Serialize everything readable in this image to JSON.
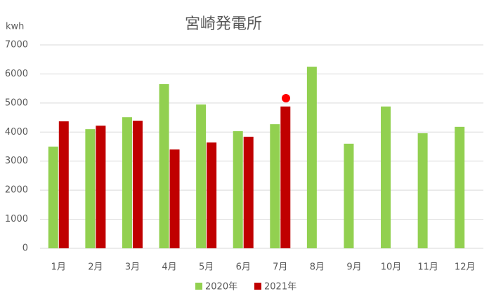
{
  "chart_data": {
    "type": "bar",
    "title": "宮崎発電所",
    "y_label": "kwh",
    "categories": [
      "1月",
      "2月",
      "3月",
      "4月",
      "5月",
      "6月",
      "7月",
      "8月",
      "9月",
      "10月",
      "11月",
      "12月"
    ],
    "series": [
      {
        "name": "2020年",
        "color": "#92d050",
        "values": [
          3500,
          4100,
          4510,
          5650,
          4950,
          4030,
          4270,
          6250,
          3600,
          4880,
          3960,
          4180
        ]
      },
      {
        "name": "2021年",
        "color": "#c00000",
        "values": [
          4370,
          4220,
          4390,
          3400,
          3640,
          3840,
          4880,
          null,
          null,
          null,
          null,
          null
        ]
      }
    ],
    "ylim": [
      0,
      7000
    ],
    "yticks": [
      0,
      1000,
      2000,
      3000,
      4000,
      5000,
      6000,
      7000
    ],
    "grid": true,
    "legend": "bottom"
  }
}
